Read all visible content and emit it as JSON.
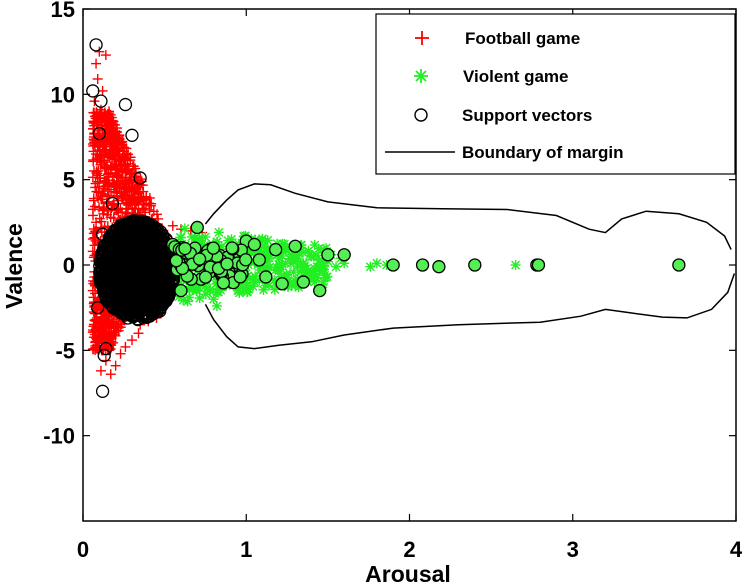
{
  "chart_data": {
    "type": "scatter",
    "title": "",
    "xlabel": "Arousal",
    "ylabel": "Valence",
    "xlim": [
      0,
      4
    ],
    "ylim": [
      -15,
      15
    ],
    "xticks": [
      0,
      1,
      2,
      3,
      4
    ],
    "yticks": [
      -10,
      -5,
      0,
      5,
      10,
      15
    ],
    "grid": false,
    "legend_position": "top-right",
    "series": [
      {
        "name": "Football game",
        "marker": "plus",
        "color": "#ff0000",
        "points": [
          [
            0.08,
            11.8
          ],
          [
            0.09,
            10.9
          ],
          [
            0.1,
            12.5
          ],
          [
            0.12,
            10.2
          ],
          [
            0.14,
            12.3
          ],
          [
            0.07,
            9.6
          ],
          [
            0.11,
            9.1
          ],
          [
            0.09,
            8.4
          ],
          [
            0.13,
            8.8
          ],
          [
            0.16,
            8.2
          ],
          [
            0.1,
            7.6
          ],
          [
            0.12,
            7.0
          ],
          [
            0.15,
            7.3
          ],
          [
            0.18,
            6.6
          ],
          [
            0.08,
            6.5
          ],
          [
            0.11,
            6.0
          ],
          [
            0.14,
            5.7
          ],
          [
            0.17,
            5.4
          ],
          [
            0.2,
            5.9
          ],
          [
            0.1,
            5.1
          ],
          [
            0.13,
            4.8
          ],
          [
            0.16,
            4.6
          ],
          [
            0.19,
            4.3
          ],
          [
            0.22,
            4.5
          ],
          [
            0.25,
            4.0
          ],
          [
            0.12,
            4.0
          ],
          [
            0.15,
            3.7
          ],
          [
            0.18,
            3.5
          ],
          [
            0.21,
            3.3
          ],
          [
            0.24,
            3.1
          ],
          [
            0.28,
            3.6
          ],
          [
            0.3,
            3.0
          ],
          [
            0.34,
            3.3
          ],
          [
            0.38,
            2.8
          ],
          [
            0.42,
            2.5
          ],
          [
            0.46,
            2.7
          ],
          [
            0.55,
            2.3
          ],
          [
            0.6,
            2.1
          ],
          [
            0.66,
            2.0
          ],
          [
            0.73,
            1.9
          ],
          [
            0.08,
            2.5
          ],
          [
            0.07,
            1.6
          ],
          [
            0.06,
            0.8
          ],
          [
            0.07,
            -0.4
          ],
          [
            0.06,
            -1.5
          ],
          [
            0.07,
            -2.4
          ],
          [
            0.08,
            -3.2
          ],
          [
            0.09,
            -3.9
          ],
          [
            0.1,
            -4.5
          ],
          [
            0.12,
            -5.0
          ],
          [
            0.14,
            -5.6
          ],
          [
            0.11,
            -6.2
          ],
          [
            0.17,
            -6.4
          ],
          [
            0.2,
            -5.9
          ],
          [
            0.23,
            -5.2
          ],
          [
            0.26,
            -4.8
          ],
          [
            0.3,
            -4.4
          ],
          [
            0.34,
            -4.0
          ],
          [
            0.13,
            -4.2
          ],
          [
            0.16,
            -3.6
          ],
          [
            0.19,
            -3.3
          ],
          [
            0.22,
            -3.0
          ],
          [
            0.35,
            -3.5
          ],
          [
            0.4,
            -3.3
          ],
          [
            0.45,
            -3.1
          ],
          [
            0.12,
            3.2
          ],
          [
            0.11,
            2.2
          ],
          [
            0.09,
            1.2
          ],
          [
            0.1,
            -1.0
          ],
          [
            0.1,
            -2.0
          ]
        ]
      },
      {
        "name": "Violent game",
        "marker": "asterisk",
        "color": "#22ee22",
        "points": [
          [
            0.6,
            1.6
          ],
          [
            0.65,
            -1.9
          ],
          [
            0.7,
            1.4
          ],
          [
            0.75,
            -1.0
          ],
          [
            0.78,
            0.9
          ],
          [
            0.8,
            -2.0
          ],
          [
            0.82,
            -2.4
          ],
          [
            0.85,
            1.1
          ],
          [
            0.88,
            0.6
          ],
          [
            0.9,
            -0.7
          ],
          [
            0.95,
            0.8
          ],
          [
            1.0,
            -0.5
          ],
          [
            1.02,
            1.2
          ],
          [
            1.05,
            0.2
          ],
          [
            1.08,
            -0.9
          ],
          [
            1.1,
            0.6
          ],
          [
            1.12,
            -1.2
          ],
          [
            1.15,
            0.9
          ],
          [
            1.18,
            -0.3
          ],
          [
            1.2,
            0.4
          ],
          [
            1.22,
            1.1
          ],
          [
            1.25,
            -0.6
          ],
          [
            1.28,
            0.3
          ],
          [
            1.3,
            -0.9
          ],
          [
            1.32,
            0.7
          ],
          [
            1.35,
            0.1
          ],
          [
            1.38,
            -0.4
          ],
          [
            1.4,
            0.5
          ],
          [
            1.42,
            -0.2
          ],
          [
            1.45,
            0.3
          ],
          [
            1.48,
            -0.6
          ],
          [
            1.5,
            0.2
          ],
          [
            1.52,
            0.6
          ],
          [
            1.55,
            -0.1
          ],
          [
            1.58,
            0.4
          ],
          [
            1.6,
            0.1
          ],
          [
            1.76,
            -0.1
          ],
          [
            1.8,
            0.1
          ],
          [
            1.86,
            0.0
          ],
          [
            2.65,
            0.0
          ],
          [
            0.72,
            0.3
          ],
          [
            0.76,
            -0.4
          ],
          [
            0.84,
            0.2
          ],
          [
            0.92,
            0.1
          ],
          [
            0.98,
            0.4
          ]
        ]
      },
      {
        "name": "Support vectors",
        "marker": "circle",
        "color": "#000000",
        "points": [
          [
            0.08,
            12.9
          ],
          [
            0.06,
            10.2
          ],
          [
            0.11,
            9.6
          ],
          [
            0.26,
            9.4
          ],
          [
            0.1,
            7.7
          ],
          [
            0.3,
            7.6
          ],
          [
            0.35,
            5.1
          ],
          [
            0.18,
            3.6
          ],
          [
            0.12,
            1.8
          ],
          [
            0.09,
            -2.5
          ],
          [
            0.14,
            -4.9
          ],
          [
            0.13,
            -5.3
          ],
          [
            0.12,
            -7.4
          ],
          [
            0.45,
            -2.6
          ],
          [
            0.47,
            -2.7
          ],
          [
            0.7,
            2.2
          ],
          [
            0.88,
            -0.4
          ],
          [
            0.9,
            -0.3
          ],
          [
            0.93,
            0.6
          ],
          [
            1.0,
            1.4
          ],
          [
            1.05,
            1.2
          ],
          [
            1.08,
            0.3
          ],
          [
            1.12,
            -0.7
          ],
          [
            1.18,
            0.9
          ],
          [
            1.22,
            -1.1
          ],
          [
            1.3,
            1.1
          ],
          [
            1.35,
            -1.0
          ],
          [
            1.45,
            -1.5
          ],
          [
            1.5,
            0.6
          ],
          [
            1.6,
            0.6
          ],
          [
            1.9,
            0.0
          ],
          [
            2.08,
            0.0
          ],
          [
            2.18,
            -0.1
          ],
          [
            2.4,
            0.0
          ],
          [
            2.78,
            0.0
          ],
          [
            2.79,
            0.0
          ],
          [
            3.65,
            0.0
          ],
          [
            0.4,
            1.8
          ],
          [
            0.45,
            -2.0
          ],
          [
            0.3,
            2.0
          ],
          [
            0.25,
            -2.2
          ],
          [
            0.55,
            1.2
          ],
          [
            0.6,
            -1.5
          ]
        ]
      },
      {
        "name": "Boundary of margin",
        "marker": "line",
        "color": "#000000",
        "upper": [
          [
            0.75,
            2.4
          ],
          [
            0.8,
            3.0
          ],
          [
            0.88,
            3.8
          ],
          [
            0.95,
            4.4
          ],
          [
            1.05,
            4.75
          ],
          [
            1.15,
            4.7
          ],
          [
            1.3,
            4.2
          ],
          [
            1.5,
            3.7
          ],
          [
            1.8,
            3.35
          ],
          [
            2.2,
            3.3
          ],
          [
            2.6,
            3.25
          ],
          [
            2.9,
            2.9
          ],
          [
            3.1,
            2.1
          ],
          [
            3.2,
            1.9
          ],
          [
            3.3,
            2.7
          ],
          [
            3.45,
            3.15
          ],
          [
            3.65,
            3.0
          ],
          [
            3.82,
            2.5
          ],
          [
            3.93,
            1.7
          ],
          [
            3.97,
            0.9
          ]
        ],
        "lower": [
          [
            0.75,
            -2.3
          ],
          [
            0.8,
            -3.2
          ],
          [
            0.88,
            -4.2
          ],
          [
            0.95,
            -4.8
          ],
          [
            1.05,
            -4.9
          ],
          [
            1.2,
            -4.7
          ],
          [
            1.4,
            -4.5
          ],
          [
            1.6,
            -4.1
          ],
          [
            1.9,
            -3.7
          ],
          [
            2.3,
            -3.5
          ],
          [
            2.8,
            -3.35
          ],
          [
            3.05,
            -3.0
          ],
          [
            3.2,
            -2.6
          ],
          [
            3.35,
            -2.8
          ],
          [
            3.55,
            -3.05
          ],
          [
            3.7,
            -3.1
          ],
          [
            3.85,
            -2.6
          ],
          [
            3.95,
            -1.6
          ],
          [
            3.99,
            -0.5
          ]
        ]
      }
    ],
    "dense_cluster": {
      "description_color": "#000000",
      "center": [
        0.33,
        -0.3
      ],
      "x_span": [
        0.12,
        0.58
      ],
      "y_span": [
        -3.2,
        2.6
      ]
    }
  }
}
